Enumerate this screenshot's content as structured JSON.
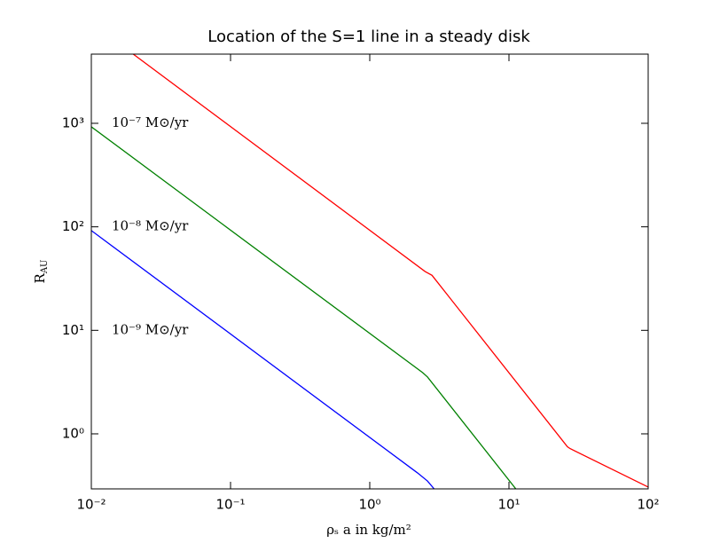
{
  "chart_data": {
    "type": "line",
    "title": "Location of the S=1 line in a steady disk",
    "xlabel": "ρₛ a in kg/m²",
    "ylabel": {
      "base": "R",
      "sub": "AU"
    },
    "log_x": true,
    "log_y": true,
    "grid": false,
    "xlim": [
      0.01,
      100
    ],
    "ylim": [
      0.294,
      4660
    ],
    "xticks": [
      {
        "value": 0.01,
        "label": "10⁻²"
      },
      {
        "value": 0.1,
        "label": "10⁻¹"
      },
      {
        "value": 1,
        "label": "10⁰"
      },
      {
        "value": 10,
        "label": "10¹"
      },
      {
        "value": 100,
        "label": "10²"
      }
    ],
    "yticks": [
      {
        "value": 1,
        "label": "10⁰"
      },
      {
        "value": 10,
        "label": "10¹"
      },
      {
        "value": 100,
        "label": "10²"
      },
      {
        "value": 1000,
        "label": "10³"
      }
    ],
    "series": [
      {
        "name": "10⁻⁷ M⊙/yr",
        "color": "#ff0000",
        "label_at": [
          0.014,
          1000
        ],
        "x": [
          0.02,
          2.5,
          2.8,
          26.3,
          27.5,
          100
        ],
        "values": [
          4660,
          37,
          34,
          0.75,
          0.72,
          0.306
        ]
      },
      {
        "name": "10⁻⁸ M⊙/yr",
        "color": "#008000",
        "label_at": [
          0.014,
          100
        ],
        "x": [
          0.01,
          2.4,
          2.6,
          11.2
        ],
        "values": [
          925,
          3.9,
          3.54,
          0.294
        ]
      },
      {
        "name": "10⁻⁹ M⊙/yr",
        "color": "#0000ff",
        "label_at": [
          0.014,
          10
        ],
        "x": [
          0.01,
          2.2,
          2.6,
          2.9
        ],
        "values": [
          92,
          0.42,
          0.35,
          0.294
        ]
      }
    ]
  }
}
